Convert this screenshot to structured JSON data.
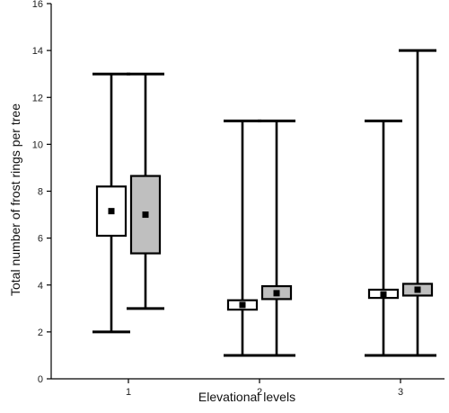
{
  "chart_data": {
    "type": "box",
    "xlabel": "Elevational levels",
    "ylabel": "Total number of frost rings per tree",
    "ylim": [
      0,
      16
    ],
    "yticks": [
      0,
      2,
      4,
      6,
      8,
      10,
      12,
      14,
      16
    ],
    "categories": [
      "1",
      "2",
      "3"
    ],
    "series": [
      {
        "fill": "#ffffff",
        "boxes": [
          {
            "category": "1",
            "min": 2,
            "q1": 6.1,
            "mean": 7.15,
            "q3": 8.2,
            "max": 13
          },
          {
            "category": "2",
            "min": 1,
            "q1": 2.95,
            "mean": 3.15,
            "q3": 3.35,
            "max": 11
          },
          {
            "category": "3",
            "min": 1,
            "q1": 3.45,
            "mean": 3.6,
            "q3": 3.8,
            "max": 11
          }
        ]
      },
      {
        "fill": "#bfbfbf",
        "boxes": [
          {
            "category": "1",
            "min": 3,
            "q1": 5.35,
            "mean": 7.0,
            "q3": 8.65,
            "max": 13
          },
          {
            "category": "2",
            "min": 1,
            "q1": 3.4,
            "mean": 3.65,
            "q3": 3.95,
            "max": 11
          },
          {
            "category": "3",
            "min": 1,
            "q1": 3.55,
            "mean": 3.8,
            "q3": 4.05,
            "max": 14
          }
        ]
      }
    ]
  }
}
